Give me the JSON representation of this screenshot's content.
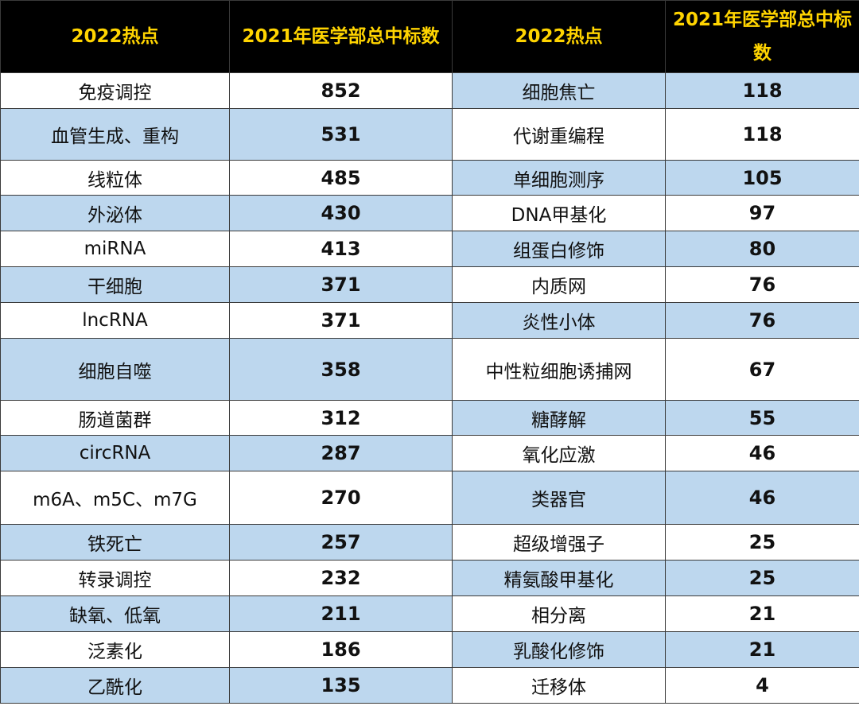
{
  "table": {
    "headers": [
      "2022热点",
      "2021年医学部总中标数",
      "2022热点",
      "2021年医学部总中标数"
    ],
    "colors": {
      "header_bg": "#000000",
      "header_text": "#ffd400",
      "band_blue": "#bdd7ee",
      "band_white": "#ffffff"
    },
    "rows": [
      {
        "left_topic": "免疫调控",
        "left_count": "852",
        "right_topic": "细胞焦亡",
        "right_count": "118"
      },
      {
        "left_topic": "血管生成、重构",
        "left_count": "531",
        "right_topic": "代谢重编程",
        "right_count": "118"
      },
      {
        "left_topic": "线粒体",
        "left_count": "485",
        "right_topic": "单细胞测序",
        "right_count": "105"
      },
      {
        "left_topic": "外泌体",
        "left_count": "430",
        "right_topic": "DNA甲基化",
        "right_count": "97"
      },
      {
        "left_topic": "miRNA",
        "left_count": "413",
        "right_topic": "组蛋白修饰",
        "right_count": "80"
      },
      {
        "left_topic": "干细胞",
        "left_count": "371",
        "right_topic": "内质网",
        "right_count": "76"
      },
      {
        "left_topic": "lncRNA",
        "left_count": "371",
        "right_topic": "炎性小体",
        "right_count": "76"
      },
      {
        "left_topic": "细胞自噬",
        "left_count": "358",
        "right_topic": "中性粒细胞诱捕网",
        "right_count": "67"
      },
      {
        "left_topic": "肠道菌群",
        "left_count": "312",
        "right_topic": "糖酵解",
        "right_count": "55"
      },
      {
        "left_topic": "circRNA",
        "left_count": "287",
        "right_topic": "氧化应激",
        "right_count": "46"
      },
      {
        "left_topic": "m6A、m5C、m7G",
        "left_count": "270",
        "right_topic": "类器官",
        "right_count": "46"
      },
      {
        "left_topic": "铁死亡",
        "left_count": "257",
        "right_topic": "超级增强子",
        "right_count": "25"
      },
      {
        "left_topic": "转录调控",
        "left_count": "232",
        "right_topic": "精氨酸甲基化",
        "right_count": "25"
      },
      {
        "left_topic": "缺氧、低氧",
        "left_count": "211",
        "right_topic": "相分离",
        "right_count": "21"
      },
      {
        "left_topic": "泛素化",
        "left_count": "186",
        "right_topic": "乳酸化修饰",
        "right_count": "21"
      },
      {
        "left_topic": "乙酰化",
        "left_count": "135",
        "right_topic": "迁移体",
        "right_count": "4"
      }
    ]
  }
}
